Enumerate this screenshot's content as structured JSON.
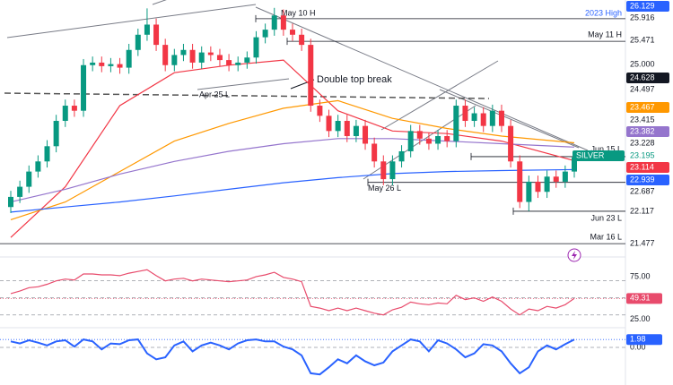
{
  "chart_data": [
    {
      "type": "candlestick",
      "symbol": "SILVER",
      "ylim": [
        21.25,
        26.25
      ],
      "up_color": "#089981",
      "down_color": "#f23645",
      "candles": [
        [
          22.2,
          22.52,
          22.08,
          22.4
        ],
        [
          22.4,
          22.72,
          22.28,
          22.6
        ],
        [
          22.6,
          23.02,
          22.48,
          22.9
        ],
        [
          22.9,
          23.22,
          22.78,
          23.1
        ],
        [
          23.1,
          23.52,
          22.98,
          23.4
        ],
        [
          23.4,
          24.02,
          23.28,
          23.9
        ],
        [
          23.9,
          24.32,
          23.78,
          24.2
        ],
        [
          24.2,
          24.32,
          23.98,
          24.1
        ],
        [
          24.1,
          25.12,
          23.98,
          25.0
        ],
        [
          25.0,
          25.17,
          24.88,
          25.05
        ],
        [
          25.05,
          25.17,
          24.86,
          24.98
        ],
        [
          24.98,
          25.14,
          24.86,
          25.02
        ],
        [
          25.02,
          25.14,
          24.83,
          24.95
        ],
        [
          24.95,
          25.42,
          24.83,
          25.3
        ],
        [
          25.3,
          25.72,
          25.18,
          25.6
        ],
        [
          25.6,
          26.12,
          25.48,
          25.8
        ],
        [
          25.8,
          25.92,
          25.28,
          25.4
        ],
        [
          25.4,
          25.52,
          24.88,
          25.0
        ],
        [
          25.0,
          25.32,
          24.88,
          25.2
        ],
        [
          25.2,
          25.42,
          25.08,
          25.3
        ],
        [
          25.3,
          25.42,
          24.93,
          25.05
        ],
        [
          25.05,
          25.37,
          24.93,
          25.25
        ],
        [
          25.25,
          25.37,
          25.08,
          25.2
        ],
        [
          25.2,
          25.32,
          24.98,
          25.1
        ],
        [
          25.1,
          25.22,
          24.88,
          25.0
        ],
        [
          25.0,
          25.17,
          24.88,
          25.05
        ],
        [
          25.05,
          25.27,
          24.93,
          25.15
        ],
        [
          25.15,
          25.67,
          25.03,
          25.55
        ],
        [
          25.55,
          25.82,
          25.43,
          25.7
        ],
        [
          25.7,
          26.13,
          25.58,
          25.98
        ],
        [
          25.98,
          26.1,
          25.58,
          25.7
        ],
        [
          25.7,
          25.82,
          25.48,
          25.6
        ],
        [
          25.6,
          25.72,
          25.28,
          25.4
        ],
        [
          25.4,
          25.52,
          24.08,
          24.2
        ],
        [
          24.2,
          24.32,
          23.88,
          24.0
        ],
        [
          24.0,
          24.12,
          23.58,
          23.7
        ],
        [
          23.7,
          24.02,
          23.58,
          23.9
        ],
        [
          23.9,
          24.02,
          23.48,
          23.6
        ],
        [
          23.6,
          23.92,
          23.48,
          23.8
        ],
        [
          23.8,
          23.92,
          23.33,
          23.45
        ],
        [
          23.45,
          23.57,
          22.98,
          23.1
        ],
        [
          23.1,
          23.22,
          22.63,
          22.75
        ],
        [
          22.75,
          23.22,
          22.63,
          23.1
        ],
        [
          23.1,
          23.42,
          22.98,
          23.3
        ],
        [
          23.3,
          23.82,
          23.18,
          23.7
        ],
        [
          23.7,
          23.82,
          23.43,
          23.55
        ],
        [
          23.55,
          23.67,
          23.33,
          23.45
        ],
        [
          23.45,
          23.72,
          23.33,
          23.6
        ],
        [
          23.6,
          23.72,
          23.38,
          23.5
        ],
        [
          23.5,
          24.32,
          23.38,
          24.2
        ],
        [
          24.2,
          24.32,
          23.78,
          23.9
        ],
        [
          23.9,
          24.17,
          23.78,
          24.05
        ],
        [
          24.05,
          24.17,
          23.68,
          23.8
        ],
        [
          23.8,
          24.22,
          23.68,
          24.1
        ],
        [
          24.1,
          24.22,
          23.68,
          23.8
        ],
        [
          23.8,
          23.92,
          22.98,
          23.1
        ],
        [
          23.1,
          23.22,
          22.18,
          22.3
        ],
        [
          22.3,
          22.82,
          22.12,
          22.7
        ],
        [
          22.7,
          22.82,
          22.38,
          22.5
        ],
        [
          22.5,
          22.92,
          22.38,
          22.8
        ],
        [
          22.8,
          22.92,
          22.58,
          22.7
        ],
        [
          22.7,
          23.02,
          22.58,
          22.9
        ],
        [
          22.9,
          23.3,
          22.78,
          23.18
        ]
      ],
      "moving_averages": {
        "x": [
          0,
          6,
          12,
          18,
          24,
          30,
          36,
          42,
          48,
          54,
          62
        ],
        "series": [
          {
            "color": "#f23645",
            "values": [
              21.6,
              22.6,
              24.2,
              24.85,
              25.0,
              25.1,
              24.1,
              23.7,
              23.65,
              23.5,
              23.114
            ]
          },
          {
            "color": "#ff9800",
            "values": [
              21.95,
              22.3,
              22.9,
              23.5,
              23.85,
              24.15,
              24.3,
              23.95,
              23.75,
              23.6,
              23.467
            ]
          },
          {
            "color": "#9575cd",
            "values": [
              22.3,
              22.55,
              22.85,
              23.1,
              23.3,
              23.45,
              23.55,
              23.55,
              23.5,
              23.45,
              23.382
            ]
          },
          {
            "color": "#2962ff",
            "values": [
              22.1,
              22.2,
              22.3,
              22.42,
              22.55,
              22.68,
              22.78,
              22.86,
              22.9,
              22.92,
              22.939
            ]
          }
        ]
      },
      "price_labels": [
        {
          "value": 26.129,
          "color": "#2962ff"
        },
        {
          "value": 25.916
        },
        {
          "value": 25.471
        },
        {
          "value": 25,
          "label": "25.000"
        },
        {
          "value": 24.628,
          "color": "#131722"
        },
        {
          "value": 24.497
        },
        {
          "value": 23.467,
          "color": "#ff9800"
        },
        {
          "value": 23.415
        },
        {
          "value": 23.382,
          "color": "#9575cd"
        },
        {
          "value": 23.228
        },
        {
          "value": 23.195,
          "text_color": "#089981"
        },
        {
          "value": 23.114,
          "color": "#f23645"
        },
        {
          "value": 22.939,
          "color": "#2962ff"
        },
        {
          "value": 22.687
        },
        {
          "value": 22.117
        },
        {
          "value": 21.477
        }
      ],
      "levels": [
        {
          "label": "May 10 H",
          "value": 25.916
        },
        {
          "label": "May 11 H",
          "value": 25.471
        },
        {
          "label": "Jun 15 L",
          "value": 23.195
        },
        {
          "label": "May 26 L",
          "value": 22.687
        },
        {
          "label": "Jun 23 L",
          "value": 22.117
        },
        {
          "label": "Mar 16 L",
          "value": 21.477
        }
      ],
      "annotations": [
        "2023 High",
        "Apr 25 L",
        "Double top break"
      ]
    },
    {
      "type": "line",
      "color": "#e84b6c",
      "ylim": [
        15,
        98
      ],
      "yticks": [
        {
          "value": 75,
          "label": "75.00"
        },
        {
          "value": 25,
          "label": "25.00"
        }
      ],
      "guides": [
        70,
        50,
        30
      ],
      "values": [
        55,
        58,
        62,
        63,
        66,
        70,
        72,
        71,
        78,
        78,
        77,
        77,
        76,
        79,
        81,
        83,
        76,
        70,
        72,
        73,
        70,
        72,
        71,
        70,
        69,
        70,
        71,
        75,
        77,
        80,
        74,
        72,
        69,
        40,
        38,
        35,
        38,
        35,
        38,
        35,
        32,
        30,
        36,
        39,
        45,
        43,
        42,
        44,
        43,
        53,
        48,
        50,
        46,
        51,
        46,
        37,
        30,
        37,
        35,
        40,
        38,
        42,
        49.31
      ]
    },
    {
      "type": "line",
      "color": "#2962ff",
      "ylim": [
        -9,
        4.5
      ],
      "yticks": [
        {
          "value": 0,
          "label": "0.00"
        }
      ],
      "values": [
        1.5,
        1.0,
        1.8,
        1.2,
        0.5,
        1.5,
        1.8,
        0.2,
        2.0,
        1.5,
        -0.5,
        1.0,
        0.8,
        1.8,
        2.0,
        -1.5,
        -3.0,
        -2.5,
        0.5,
        1.5,
        -1.0,
        0.5,
        1.2,
        0.5,
        -0.5,
        1.0,
        1.8,
        2.0,
        1.5,
        1.5,
        0.2,
        -0.5,
        -2.0,
        -6.5,
        -6.8,
        -5.0,
        -3.0,
        -4.0,
        -2.0,
        -3.5,
        -4.5,
        -3.8,
        -1.0,
        0.5,
        2.0,
        1.5,
        -1.0,
        1.8,
        1.0,
        -0.5,
        -2.5,
        -1.5,
        0.8,
        0.5,
        -1.0,
        -4.0,
        -6.5,
        -5.0,
        -1.0,
        0.5,
        -0.5,
        0.8,
        1.98
      ]
    }
  ]
}
